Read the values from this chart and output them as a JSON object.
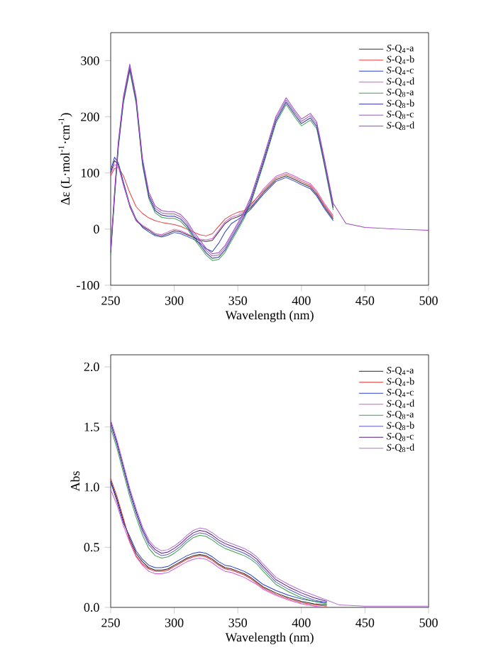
{
  "chart_data": [
    {
      "type": "line",
      "xlabel": "Wavelength (nm)",
      "ylabel": "Δε (L·mol$^{-1}$·cm$^{-1}$)",
      "xlim": [
        250,
        500
      ],
      "ylim": [
        -100,
        350
      ],
      "xticks": [
        250,
        300,
        350,
        400,
        450,
        500
      ],
      "yticks": [
        -100,
        0,
        100,
        200,
        300
      ],
      "legend": "top right",
      "x": [
        250,
        253,
        256,
        260,
        265,
        270,
        275,
        280,
        285,
        290,
        295,
        300,
        305,
        310,
        315,
        320,
        325,
        330,
        335,
        340,
        345,
        350,
        355,
        360,
        370,
        380,
        388,
        395,
        400,
        407,
        412,
        418,
        425,
        435,
        450,
        475,
        500
      ],
      "series": [
        {
          "name": "*S*-Q$_{4}$-a",
          "color": "#333333",
          "values": [
            100,
            122,
            115,
            80,
            40,
            15,
            5,
            -2,
            -10,
            -12,
            -8,
            -3,
            -5,
            -10,
            -15,
            -20,
            -22,
            -20,
            -5,
            10,
            18,
            22,
            28,
            38,
            65,
            88,
            95,
            88,
            82,
            75,
            62,
            40,
            18,
            null,
            null,
            null,
            null
          ]
        },
        {
          "name": "*S*-Q$_{4}$-b",
          "color": "#e8413f",
          "values": [
            95,
            108,
            110,
            95,
            65,
            40,
            28,
            20,
            15,
            12,
            10,
            8,
            5,
            0,
            -5,
            -10,
            -12,
            -8,
            5,
            18,
            25,
            30,
            33,
            44,
            68,
            91,
            98,
            91,
            85,
            78,
            65,
            43,
            21,
            null,
            null,
            null,
            null
          ]
        },
        {
          "name": "*S*-Q$_{4}$-c",
          "color": "#2b3fd0",
          "values": [
            105,
            128,
            118,
            84,
            44,
            18,
            3,
            -5,
            -12,
            -14,
            -11,
            -6,
            -8,
            -13,
            -18,
            -25,
            -35,
            -40,
            -25,
            -5,
            10,
            17,
            25,
            35,
            62,
            85,
            92,
            85,
            79,
            72,
            59,
            37,
            15,
            null,
            null,
            null,
            null
          ]
        },
        {
          "name": "*S*-Q$_{4}$-d",
          "color": "#d45bd4",
          "values": [
            98,
            115,
            112,
            78,
            42,
            16,
            7,
            0,
            -8,
            -10,
            -5,
            0,
            -3,
            -8,
            -14,
            -18,
            -19,
            -17,
            -2,
            13,
            21,
            25,
            31,
            41,
            71,
            94,
            101,
            94,
            88,
            81,
            68,
            46,
            24,
            null,
            null,
            null,
            null
          ]
        },
        {
          "name": "*S*-Q$_{8}$-a",
          "color": "#3aa14a",
          "values": [
            -46,
            54,
            144,
            224,
            282,
            224,
            114,
            54,
            29,
            21,
            19,
            19,
            14,
            2,
            -16,
            -31,
            -46,
            -56,
            -54,
            -41,
            -21,
            -1,
            19,
            44,
            114,
            189,
            222,
            199,
            184,
            194,
            179,
            114,
            34,
            null,
            null,
            null,
            null
          ]
        },
        {
          "name": "*S*-Q$_{8}$-b",
          "color": "#2c2c9c",
          "values": [
            -42,
            58,
            148,
            228,
            286,
            228,
            118,
            58,
            33,
            25,
            23,
            23,
            18,
            6,
            -12,
            -27,
            -42,
            -52,
            -50,
            -37,
            -17,
            3,
            23,
            48,
            118,
            193,
            226,
            203,
            188,
            198,
            183,
            118,
            38,
            null,
            null,
            null,
            null
          ]
        },
        {
          "name": "*S*-Q$_{8}$-c",
          "color": "#8e5fb8",
          "values": [
            -38,
            62,
            152,
            232,
            290,
            232,
            122,
            62,
            37,
            29,
            27,
            27,
            22,
            10,
            -8,
            -23,
            -38,
            -48,
            -46,
            -33,
            -13,
            7,
            27,
            52,
            122,
            197,
            230,
            207,
            192,
            202,
            187,
            122,
            42,
            null,
            null,
            null,
            null
          ]
        },
        {
          "name": "*S*-Q$_{8}$-d",
          "color": "#a040c0",
          "values": [
            -34,
            66,
            156,
            236,
            294,
            236,
            126,
            66,
            41,
            33,
            31,
            31,
            26,
            14,
            -4,
            -19,
            -34,
            -44,
            -42,
            -29,
            -9,
            11,
            31,
            56,
            126,
            201,
            234,
            211,
            196,
            206,
            191,
            126,
            46,
            10,
            3,
            0,
            -2
          ]
        }
      ]
    },
    {
      "type": "line",
      "xlabel": "Wavelength (nm)",
      "ylabel": "Abs",
      "xlim": [
        250,
        500
      ],
      "ylim": [
        0,
        2.1
      ],
      "xticks": [
        250,
        300,
        350,
        400,
        450,
        500
      ],
      "yticks": [
        {
          "value": 0,
          "label": "0.0"
        },
        {
          "value": 0.5,
          "label": "0.5"
        },
        {
          "value": 1.0,
          "label": "1.0"
        },
        {
          "value": 1.5,
          "label": "1.5"
        },
        {
          "value": 2.0,
          "label": "2.0"
        }
      ],
      "legend": "top right",
      "x": [
        250,
        255,
        260,
        265,
        270,
        275,
        280,
        285,
        290,
        295,
        300,
        305,
        310,
        315,
        320,
        325,
        330,
        335,
        340,
        345,
        350,
        355,
        360,
        365,
        370,
        380,
        390,
        400,
        410,
        420,
        430,
        450,
        475,
        500
      ],
      "series": [
        {
          "name": "*S*-Q$_{4}$-a",
          "color": "#222222",
          "values": [
            1.05,
            0.9,
            0.72,
            0.57,
            0.45,
            0.38,
            0.33,
            0.31,
            0.31,
            0.32,
            0.35,
            0.38,
            0.41,
            0.43,
            0.44,
            0.43,
            0.4,
            0.36,
            0.33,
            0.32,
            0.3,
            0.28,
            0.25,
            0.21,
            0.17,
            0.12,
            0.08,
            0.05,
            0.03,
            0.02,
            null,
            null,
            null,
            null
          ]
        },
        {
          "name": "*S*-Q$_{4}$-b",
          "color": "#e0302e",
          "values": [
            1.07,
            0.92,
            0.74,
            0.55,
            0.43,
            0.36,
            0.32,
            0.3,
            0.3,
            0.31,
            0.34,
            0.37,
            0.4,
            0.42,
            0.43,
            0.42,
            0.39,
            0.35,
            0.32,
            0.31,
            0.29,
            0.27,
            0.24,
            0.2,
            0.16,
            0.11,
            0.07,
            0.04,
            0.02,
            0.01,
            null,
            null,
            null,
            null
          ]
        },
        {
          "name": "*S*-Q$_{4}$-c",
          "color": "#2b3fd0",
          "values": [
            1.04,
            0.88,
            0.7,
            0.59,
            0.47,
            0.4,
            0.35,
            0.33,
            0.33,
            0.34,
            0.37,
            0.4,
            0.43,
            0.45,
            0.46,
            0.45,
            0.42,
            0.38,
            0.35,
            0.34,
            0.32,
            0.3,
            0.27,
            0.23,
            0.19,
            0.14,
            0.1,
            0.07,
            0.05,
            0.04,
            null,
            null,
            null,
            null
          ]
        },
        {
          "name": "*S*-Q$_{4}$-d",
          "color": "#d45bd4",
          "values": [
            0.98,
            0.85,
            0.68,
            0.54,
            0.42,
            0.35,
            0.3,
            0.28,
            0.28,
            0.29,
            0.32,
            0.35,
            0.38,
            0.4,
            0.41,
            0.4,
            0.37,
            0.33,
            0.3,
            0.29,
            0.27,
            0.25,
            0.22,
            0.19,
            0.15,
            0.1,
            0.06,
            0.03,
            0.01,
            0.0,
            null,
            null,
            null,
            null
          ]
        },
        {
          "name": "*S*-Q$_{8}$-a",
          "color": "#3aa14a",
          "values": [
            1.49,
            1.32,
            1.12,
            0.92,
            0.75,
            0.6,
            0.49,
            0.43,
            0.41,
            0.42,
            0.45,
            0.49,
            0.54,
            0.58,
            0.6,
            0.59,
            0.56,
            0.52,
            0.49,
            0.47,
            0.45,
            0.43,
            0.4,
            0.36,
            0.3,
            0.19,
            0.13,
            0.08,
            0.05,
            0.03,
            null,
            null,
            null,
            null
          ]
        },
        {
          "name": "*S*-Q$_{8}$-b",
          "color": "#5a5ac8",
          "values": [
            1.52,
            1.35,
            1.15,
            0.95,
            0.78,
            0.63,
            0.52,
            0.46,
            0.43,
            0.44,
            0.47,
            0.51,
            0.56,
            0.6,
            0.62,
            0.61,
            0.58,
            0.54,
            0.51,
            0.49,
            0.47,
            0.45,
            0.42,
            0.38,
            0.32,
            0.21,
            0.15,
            0.1,
            0.06,
            0.04,
            null,
            null,
            null,
            null
          ]
        },
        {
          "name": "*S*-Q$_{8}$-c",
          "color": "#5a1a8a",
          "values": [
            1.54,
            1.37,
            1.17,
            0.97,
            0.8,
            0.65,
            0.54,
            0.48,
            0.45,
            0.46,
            0.49,
            0.53,
            0.58,
            0.62,
            0.64,
            0.63,
            0.6,
            0.56,
            0.53,
            0.51,
            0.49,
            0.47,
            0.44,
            0.4,
            0.34,
            0.23,
            0.17,
            0.12,
            0.08,
            0.05,
            null,
            null,
            null,
            null
          ]
        },
        {
          "name": "*S*-Q$_{8}$-d",
          "color": "#b070d0",
          "values": [
            1.56,
            1.39,
            1.19,
            0.99,
            0.82,
            0.67,
            0.56,
            0.5,
            0.47,
            0.48,
            0.51,
            0.55,
            0.6,
            0.64,
            0.66,
            0.65,
            0.62,
            0.58,
            0.55,
            0.53,
            0.51,
            0.49,
            0.46,
            0.42,
            0.36,
            0.25,
            0.19,
            0.14,
            0.1,
            0.06,
            0.02,
            0.01,
            0.01,
            0.01
          ]
        }
      ]
    }
  ]
}
